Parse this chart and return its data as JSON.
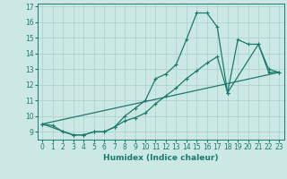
{
  "title": "",
  "xlabel": "Humidex (Indice chaleur)",
  "ylabel": "",
  "bg_color": "#cce8e4",
  "line_color": "#1a7a6e",
  "grid_color": "#aacfcc",
  "xlim": [
    -0.5,
    23.5
  ],
  "ylim": [
    8.5,
    17.2
  ],
  "xticks": [
    0,
    1,
    2,
    3,
    4,
    5,
    6,
    7,
    8,
    9,
    10,
    11,
    12,
    13,
    14,
    15,
    16,
    17,
    18,
    19,
    20,
    21,
    22,
    23
  ],
  "yticks": [
    9,
    10,
    11,
    12,
    13,
    14,
    15,
    16,
    17
  ],
  "series1_x": [
    0,
    1,
    2,
    3,
    4,
    5,
    6,
    7,
    8,
    9,
    10,
    11,
    12,
    13,
    14,
    15,
    16,
    17,
    18,
    21,
    22,
    23
  ],
  "series1_y": [
    9.5,
    9.4,
    9.0,
    8.8,
    8.8,
    9.0,
    9.0,
    9.3,
    10.0,
    10.5,
    11.0,
    12.4,
    12.7,
    13.3,
    14.9,
    16.6,
    16.6,
    15.7,
    11.5,
    14.6,
    13.0,
    12.8
  ],
  "series2_x": [
    0,
    3,
    4,
    5,
    6,
    7,
    8,
    9,
    10,
    11,
    12,
    13,
    14,
    15,
    16,
    17,
    18,
    19,
    20,
    21,
    22,
    23
  ],
  "series2_y": [
    9.5,
    8.8,
    8.8,
    9.0,
    9.0,
    9.3,
    9.7,
    9.9,
    10.2,
    10.8,
    11.3,
    11.8,
    12.4,
    12.9,
    13.4,
    13.8,
    11.5,
    14.9,
    14.6,
    14.6,
    12.8,
    12.8
  ],
  "series3_x": [
    0,
    23
  ],
  "series3_y": [
    9.5,
    12.8
  ]
}
